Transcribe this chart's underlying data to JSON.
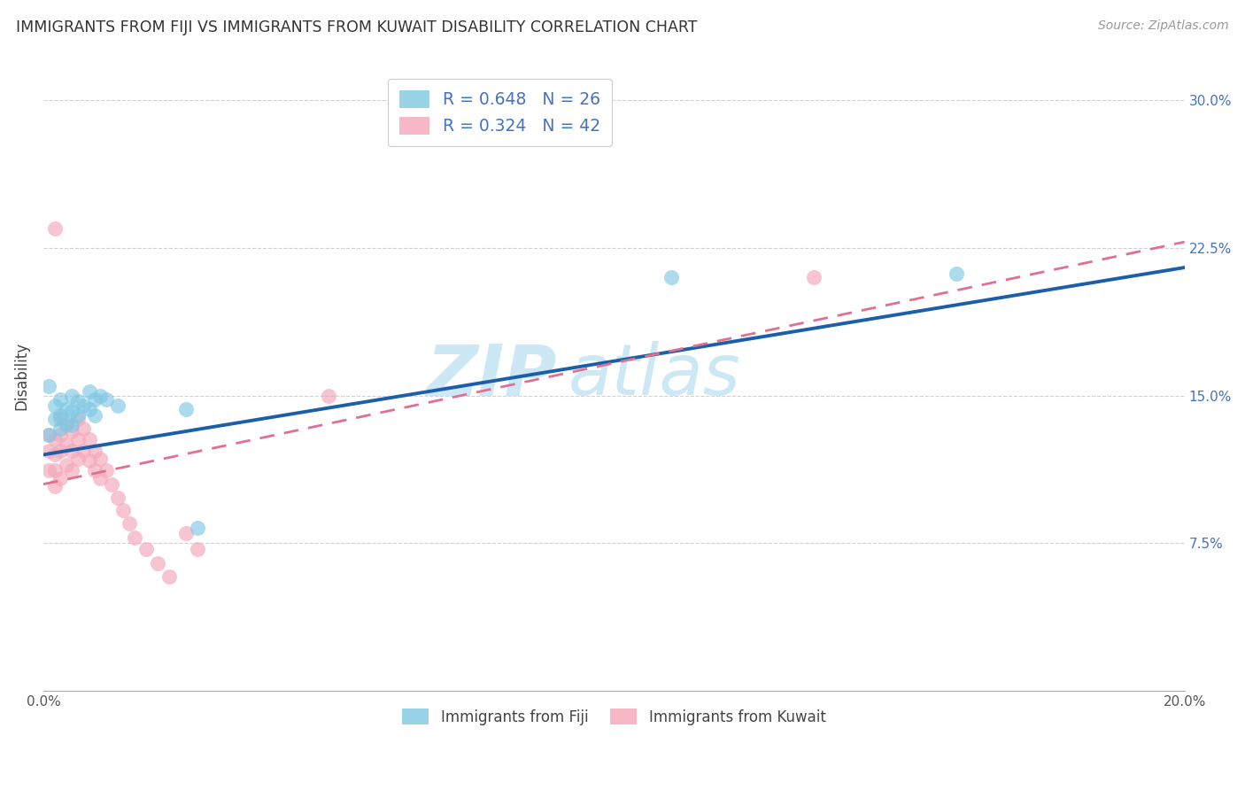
{
  "title": "IMMIGRANTS FROM FIJI VS IMMIGRANTS FROM KUWAIT DISABILITY CORRELATION CHART",
  "source": "Source: ZipAtlas.com",
  "ylabel": "Disability",
  "xlim": [
    0.0,
    0.2
  ],
  "ylim": [
    0.0,
    0.32
  ],
  "yticks": [
    0.075,
    0.15,
    0.225,
    0.3
  ],
  "ytick_labels": [
    "7.5%",
    "15.0%",
    "22.5%",
    "30.0%"
  ],
  "fiji_R": 0.648,
  "fiji_N": 26,
  "kuwait_R": 0.324,
  "kuwait_N": 42,
  "fiji_color": "#7ec8e3",
  "kuwait_color": "#f4a7b9",
  "fiji_line_color": "#1a5fa8",
  "kuwait_line_color": "#e07090",
  "legend_text_color": "#4472c4",
  "watermark_color": "#cde8f5",
  "fiji_line_x0": 0.0,
  "fiji_line_y0": 0.12,
  "fiji_line_x1": 0.2,
  "fiji_line_y1": 0.215,
  "kuwait_line_x0": 0.0,
  "kuwait_line_y0": 0.105,
  "kuwait_line_x1": 0.2,
  "kuwait_line_y1": 0.228,
  "fiji_scatter_x": [
    0.001,
    0.001,
    0.002,
    0.002,
    0.003,
    0.003,
    0.003,
    0.004,
    0.004,
    0.005,
    0.005,
    0.005,
    0.006,
    0.006,
    0.007,
    0.008,
    0.008,
    0.009,
    0.009,
    0.01,
    0.011,
    0.013,
    0.025,
    0.027,
    0.11,
    0.16
  ],
  "fiji_scatter_y": [
    0.155,
    0.13,
    0.145,
    0.138,
    0.148,
    0.14,
    0.133,
    0.143,
    0.136,
    0.15,
    0.142,
    0.135,
    0.147,
    0.14,
    0.145,
    0.152,
    0.143,
    0.148,
    0.14,
    0.15,
    0.148,
    0.145,
    0.143,
    0.083,
    0.21,
    0.212
  ],
  "kuwait_scatter_x": [
    0.001,
    0.001,
    0.001,
    0.002,
    0.002,
    0.002,
    0.002,
    0.003,
    0.003,
    0.003,
    0.003,
    0.004,
    0.004,
    0.004,
    0.005,
    0.005,
    0.005,
    0.006,
    0.006,
    0.006,
    0.007,
    0.007,
    0.008,
    0.008,
    0.009,
    0.009,
    0.01,
    0.01,
    0.011,
    0.012,
    0.013,
    0.014,
    0.015,
    0.016,
    0.018,
    0.02,
    0.022,
    0.025,
    0.027,
    0.05,
    0.135,
    0.002
  ],
  "kuwait_scatter_y": [
    0.13,
    0.122,
    0.112,
    0.128,
    0.12,
    0.112,
    0.104,
    0.138,
    0.13,
    0.122,
    0.108,
    0.135,
    0.125,
    0.115,
    0.132,
    0.122,
    0.112,
    0.138,
    0.128,
    0.118,
    0.133,
    0.122,
    0.128,
    0.117,
    0.122,
    0.112,
    0.118,
    0.108,
    0.112,
    0.105,
    0.098,
    0.092,
    0.085,
    0.078,
    0.072,
    0.065,
    0.058,
    0.08,
    0.072,
    0.15,
    0.21,
    0.235
  ]
}
